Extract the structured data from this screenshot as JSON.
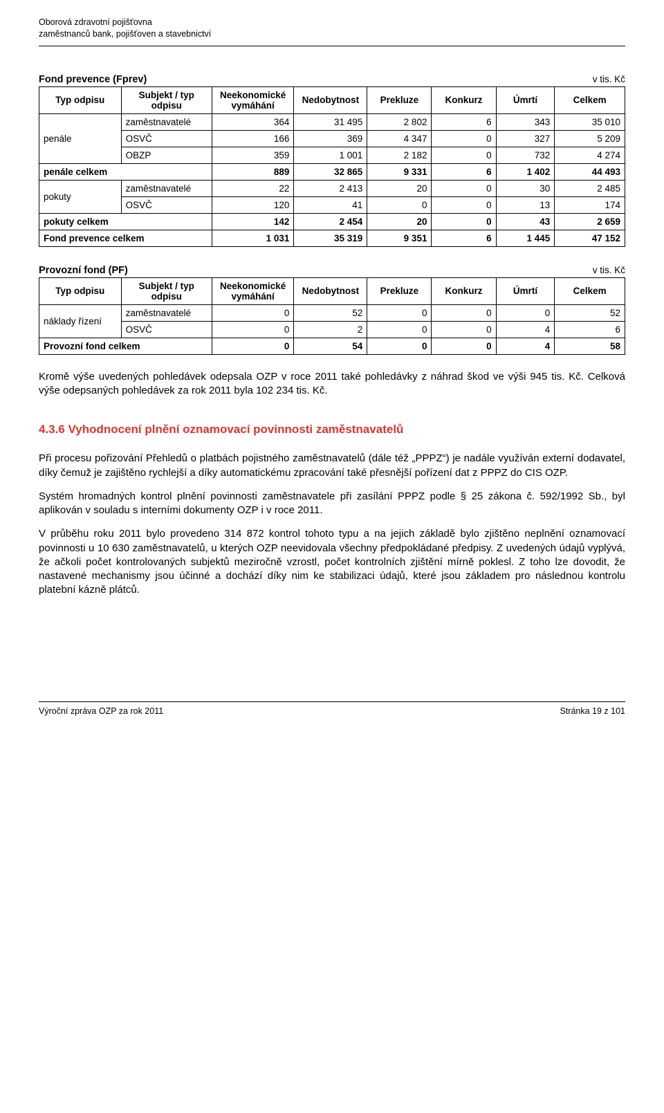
{
  "letterhead": {
    "line1": "Oborová zdravotní pojišťovna",
    "line2": "zaměstnanců bank, pojišťoven a stavebnictví"
  },
  "tableHeaders": {
    "typOdpisu": "Typ odpisu",
    "subjekt": "Subjekt / typ odpisu",
    "neekon": "Neekonomické vymáhání",
    "nedobyt": "Nedobytnost",
    "prekluze": "Prekluze",
    "konkurz": "Konkurz",
    "umrti": "Úmrtí",
    "celkem": "Celkem"
  },
  "table1": {
    "title": "Fond prevence (Fprev)",
    "units": "v tis. Kč",
    "groups": [
      {
        "label": "penále",
        "rows": [
          {
            "label": "zaměstnavatelé",
            "vals": [
              "364",
              "31 495",
              "2 802",
              "6",
              "343",
              "35 010"
            ]
          },
          {
            "label": "OSVČ",
            "vals": [
              "166",
              "369",
              "4 347",
              "0",
              "327",
              "5 209"
            ]
          },
          {
            "label": "OBZP",
            "vals": [
              "359",
              "1 001",
              "2 182",
              "0",
              "732",
              "4 274"
            ]
          }
        ],
        "subtotal": {
          "label": "penále celkem",
          "vals": [
            "889",
            "32 865",
            "9 331",
            "6",
            "1 402",
            "44 493"
          ]
        }
      },
      {
        "label": "pokuty",
        "rows": [
          {
            "label": "zaměstnavatelé",
            "vals": [
              "22",
              "2 413",
              "20",
              "0",
              "30",
              "2 485"
            ]
          },
          {
            "label": "OSVČ",
            "vals": [
              "120",
              "41",
              "0",
              "0",
              "13",
              "174"
            ]
          }
        ],
        "subtotal": {
          "label": "pokuty celkem",
          "vals": [
            "142",
            "2 454",
            "20",
            "0",
            "43",
            "2 659"
          ]
        }
      }
    ],
    "grand": {
      "label": "Fond prevence celkem",
      "vals": [
        "1 031",
        "35 319",
        "9 351",
        "6",
        "1 445",
        "47 152"
      ]
    }
  },
  "table2": {
    "title": "Provozní fond (PF)",
    "units": "v tis. Kč",
    "groups": [
      {
        "label": "náklady řízení",
        "rows": [
          {
            "label": "zaměstnavatelé",
            "vals": [
              "0",
              "52",
              "0",
              "0",
              "0",
              "52"
            ]
          },
          {
            "label": "OSVČ",
            "vals": [
              "0",
              "2",
              "0",
              "0",
              "4",
              "6"
            ]
          }
        ]
      }
    ],
    "grand": {
      "label": "Provozní fond celkem",
      "vals": [
        "0",
        "54",
        "0",
        "0",
        "4",
        "58"
      ]
    }
  },
  "para1": "Kromě výše uvedených pohledávek odepsala OZP v roce 2011 také pohledávky z náhrad škod ve výši 945 tis. Kč. Celková výše odepsaných pohledávek za rok 2011 byla 102 234 tis. Kč.",
  "sectionHeading": "4.3.6 Vyhodnocení plnění oznamovací povinnosti zaměstnavatelů",
  "para2": "Při procesu pořizování Přehledů o platbách pojistného zaměstnavatelů (dále též „PPPZ“) je nadále využíván externí dodavatel, díky čemuž je zajištěno rychlejší a díky automatickému zpracování také přesnější pořízení dat z PPPZ do CIS OZP.",
  "para3": "Systém hromadných kontrol plnění povinnosti zaměstnavatele při zasílání PPPZ podle § 25 zákona č. 592/1992 Sb., byl aplikován v souladu s interními dokumenty OZP i v roce 2011.",
  "para4": "V průběhu roku 2011 bylo provedeno 314 872 kontrol tohoto typu a na jejich základě bylo zjištěno neplnění oznamovací povinnosti u 10 630 zaměstnavatelů, u kterých OZP neevidovala všechny předpokládané předpisy. Z uvedených údajů vyplývá, že ačkoli počet kontrolovaných subjektů meziročně vzrostl, počet kontrolních zjištění mírně poklesl. Z toho lze dovodit, že nastavené mechanismy jsou účinné a dochází díky nim ke stabilizaci údajů, které jsou základem pro následnou kontrolu platební kázně plátců.",
  "footer": {
    "left": "Výroční zpráva OZP za rok 2011",
    "right": "Stránka 19 z 101"
  }
}
